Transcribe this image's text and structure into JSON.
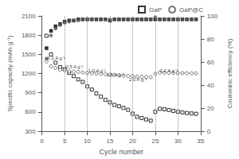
{
  "chart_data": {
    "type": "scatter",
    "xlabel": "Cycle number",
    "ylabel": "Specific capacity (mAh g⁻¹)",
    "y2label": "Coulombic efficiency (%)",
    "xlim": [
      0,
      35
    ],
    "xticks": [
      0,
      5,
      10,
      15,
      20,
      25,
      30,
      35
    ],
    "ylim": [
      300,
      2100
    ],
    "yticks": [
      300,
      600,
      900,
      1200,
      1500,
      1800,
      2100
    ],
    "y2lim": [
      0,
      100
    ],
    "y2ticks": [
      0,
      20,
      40,
      60,
      80,
      100
    ],
    "grid": false,
    "legend": "upper right",
    "x": [
      1,
      2,
      3,
      4,
      5,
      6,
      7,
      8,
      9,
      10,
      11,
      12,
      13,
      14,
      15,
      16,
      17,
      18,
      19,
      20,
      21,
      22,
      23,
      24,
      25,
      26,
      27,
      28,
      29,
      30,
      31,
      32,
      33,
      34
    ],
    "series": [
      {
        "name": "GaP",
        "color": "#000000",
        "marker": "open_square",
        "values": [
          1790,
          1500,
          1370,
          1300,
          1270,
          1210,
          1160,
          1110,
          1070,
          1000,
          950,
          890,
          840,
          790,
          750,
          710,
          690,
          665,
          635,
          575,
          525,
          505,
          485,
          465,
          605,
          650,
          643,
          632,
          618,
          605,
          595,
          585,
          578,
          572
        ]
      },
      {
        "name": "GaP@C",
        "color": "#555555",
        "marker": "open_circle",
        "values": [
          1390,
          1315,
          1288,
          1260,
          1248,
          1238,
          1230,
          1225,
          1218,
          1210,
          1205,
          1200,
          1195,
          1190,
          1183,
          1178,
          1173,
          1168,
          1163,
          1158,
          1153,
          1150,
          1147,
          1144,
          1195,
          1215,
          1213,
          1212,
          1211,
          1208,
          1207,
          1206,
          1204,
          1203
        ]
      },
      {
        "name": "GaP",
        "color": "#000000",
        "marker": "square",
        "axis": "y2",
        "values": [
          72,
          87,
          91,
          93,
          95,
          96,
          96,
          97,
          97,
          97,
          97,
          97,
          97,
          97,
          96,
          97,
          97,
          97,
          97,
          97,
          97,
          97,
          97,
          97,
          97,
          97,
          97,
          97,
          97,
          97,
          97,
          97,
          97,
          97
        ]
      },
      {
        "name": "GaP@C",
        "color": "#555555",
        "marker": "circle",
        "axis": "y2",
        "values": [
          63,
          83,
          89,
          92,
          94,
          95,
          96,
          96,
          97,
          97,
          97,
          97,
          97,
          97,
          97,
          97,
          97,
          97,
          97,
          97,
          97,
          97,
          97,
          97,
          99,
          97,
          97,
          97,
          97,
          97,
          97,
          97,
          97,
          97
        ]
      }
    ],
    "vlines": [
      5,
      10,
      15,
      20,
      25,
      30
    ],
    "annotations": [
      {
        "text": "0.2 A g⁻¹",
        "x": 1.2,
        "y": 1440
      },
      {
        "text": "0.5 A g⁻¹",
        "x": 5.2,
        "y": 1310
      },
      {
        "text": "1.0 A g⁻¹",
        "x": 10.2,
        "y": 1250
      },
      {
        "text": "1.5 A g⁻¹",
        "x": 14.2,
        "y": 1185
      },
      {
        "text": "2.0 A g⁻¹",
        "x": 19.2,
        "y": 1110
      },
      {
        "text": "0.2 A g⁻¹",
        "x": 26.0,
        "y": 1250
      }
    ]
  }
}
